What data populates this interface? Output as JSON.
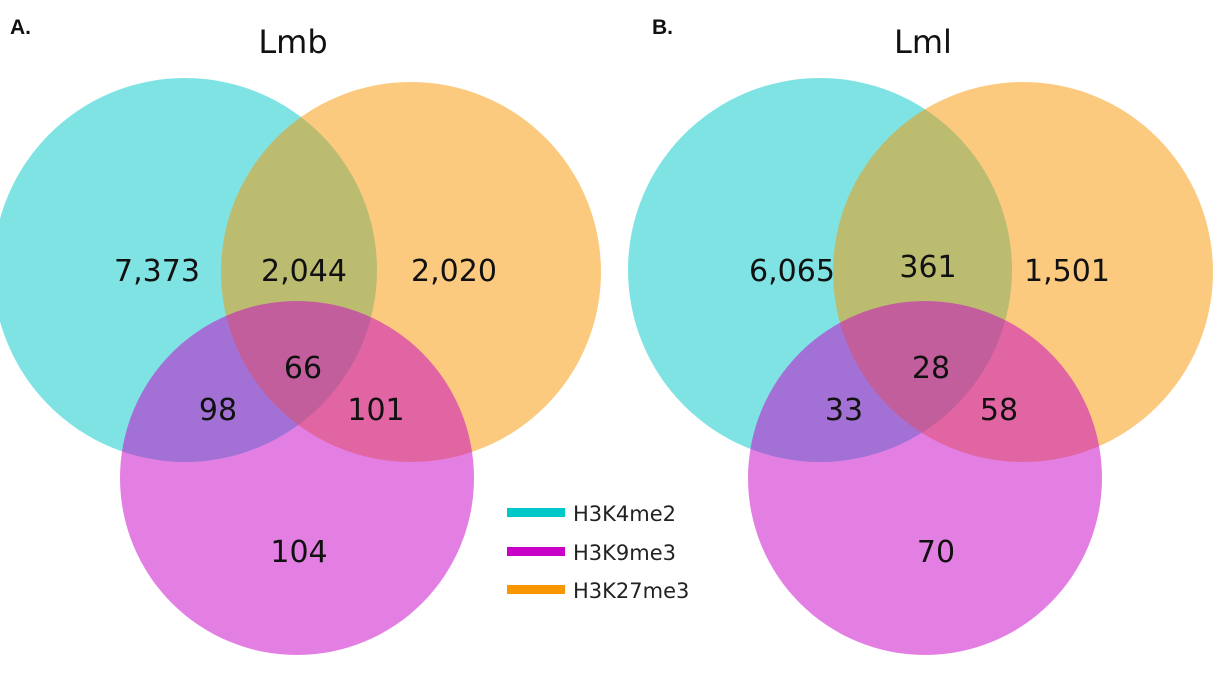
{
  "colors": {
    "H3K4me2": "#00c8c8",
    "H3K9me3": "#c800c8",
    "H3K27me3": "#fa9600"
  },
  "panels": [
    {
      "letter": "A.",
      "title": "Lmb",
      "counts": {
        "h3k4me2_only": "7,373",
        "h3k4me2_h3k27me3": "2,044",
        "h3k27me3_only": "2,020",
        "all_three": "66",
        "h3k4me2_h3k9me3": "98",
        "h3k9me3_h3k27me3": "101",
        "h3k9me3_only": "104"
      }
    },
    {
      "letter": "B.",
      "title": "Lml",
      "counts": {
        "h3k4me2_only": "6,065",
        "h3k4me2_h3k27me3": "361",
        "h3k27me3_only": "1,501",
        "all_three": "28",
        "h3k4me2_h3k9me3": "33",
        "h3k9me3_h3k27me3": "58",
        "h3k9me3_only": "70"
      }
    }
  ],
  "legend": [
    {
      "label": "H3K4me2",
      "color": "#00c8c8"
    },
    {
      "label": "H3K9me3",
      "color": "#c800c8"
    },
    {
      "label": "H3K27me3",
      "color": "#fa9600"
    }
  ]
}
